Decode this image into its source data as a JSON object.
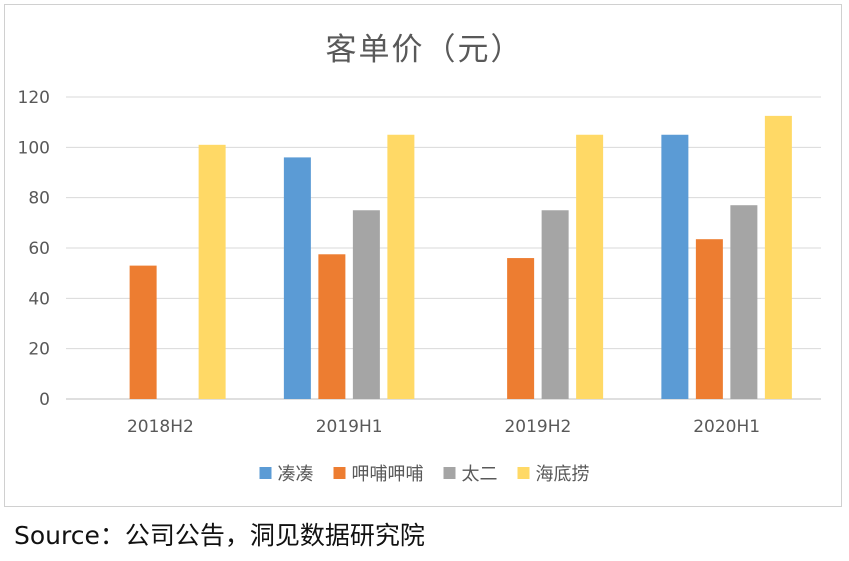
{
  "chart_data": {
    "type": "bar",
    "title": "客单价（元）",
    "categories": [
      "2018H2",
      "2019H1",
      "2019H2",
      "2020H1"
    ],
    "series": [
      {
        "name": "凑凑",
        "color": "#5b9bd5",
        "values": [
          null,
          96,
          null,
          105
        ]
      },
      {
        "name": "呷哺呷哺",
        "color": "#ed7d31",
        "values": [
          53,
          57.5,
          56,
          63.5
        ]
      },
      {
        "name": "太二",
        "color": "#a5a5a5",
        "values": [
          null,
          75,
          75,
          77
        ]
      },
      {
        "name": "海底捞",
        "color": "#ffd966",
        "values": [
          101,
          105,
          105,
          112.5
        ]
      }
    ],
    "ylim": [
      0,
      120
    ],
    "yticks": [
      0,
      20,
      40,
      60,
      80,
      100,
      120
    ],
    "grid": true,
    "legend_position": "bottom",
    "xlabel": "",
    "ylabel": ""
  },
  "source": "Source：公司公告，洞见数据研究院"
}
